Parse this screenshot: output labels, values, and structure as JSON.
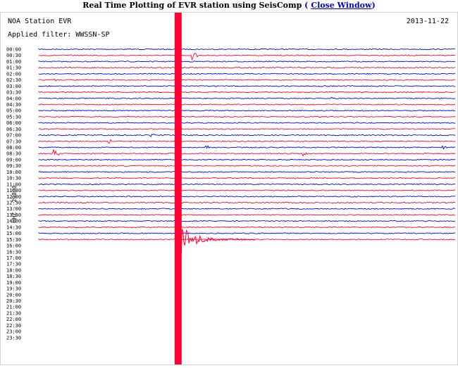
{
  "header": {
    "title": "Real Time Plotting of EVR station using SeisComp",
    "close_label": "Close Window"
  },
  "plot": {
    "station": "NOA Station EVR",
    "date": "2013-11-22",
    "filter": "Applied filter: WWSSN-SP",
    "channel_label": "HHZ - 29000"
  },
  "chart_data": {
    "type": "line",
    "title": "NOA Station EVR",
    "subtitle": "Applied filter: WWSSN-SP",
    "date": "2013-11-22",
    "ylabel": "HHZ - 29000",
    "y_ticks": [
      "00:00",
      "00:30",
      "01:00",
      "01:30",
      "02:00",
      "02:30",
      "03:00",
      "03:30",
      "04:00",
      "04:30",
      "05:00",
      "05:30",
      "06:00",
      "06:30",
      "07:00",
      "07:30",
      "08:00",
      "08:30",
      "09:00",
      "09:30",
      "10:00",
      "10:30",
      "11:00",
      "11:30",
      "12:00",
      "12:30",
      "13:00",
      "13:30",
      "14:00",
      "14:30",
      "15:00",
      "15:30",
      "16:00",
      "16:30",
      "17:00",
      "17:30",
      "18:00",
      "18:30",
      "19:00",
      "19:30",
      "20:00",
      "20:30",
      "21:00",
      "21:30",
      "22:00",
      "22:30",
      "23:00",
      "23:30"
    ],
    "trace_colors": [
      "#0000ff",
      "#ff0033"
    ],
    "traces_recorded_through": "15:30",
    "events": [
      {
        "time": "00:30",
        "minute": 11,
        "amplitude": "medium"
      },
      {
        "time": "02:30",
        "minute": 1,
        "amplitude": "small"
      },
      {
        "time": "04:00",
        "minute": 21,
        "amplitude": "small"
      },
      {
        "time": "07:00",
        "minute": 8,
        "amplitude": "small"
      },
      {
        "time": "07:30",
        "minute": 5,
        "amplitude": "small"
      },
      {
        "time": "08:00",
        "minute": 12,
        "amplitude": "small"
      },
      {
        "time": "08:00",
        "minute": 29,
        "amplitude": "small"
      },
      {
        "time": "08:30",
        "minute": 1,
        "amplitude": "medium"
      },
      {
        "time": "08:30",
        "minute": 19,
        "amplitude": "small"
      },
      {
        "time": "15:30",
        "minute": 10,
        "amplitude": "very large"
      }
    ],
    "grid": false,
    "legend": "none"
  }
}
